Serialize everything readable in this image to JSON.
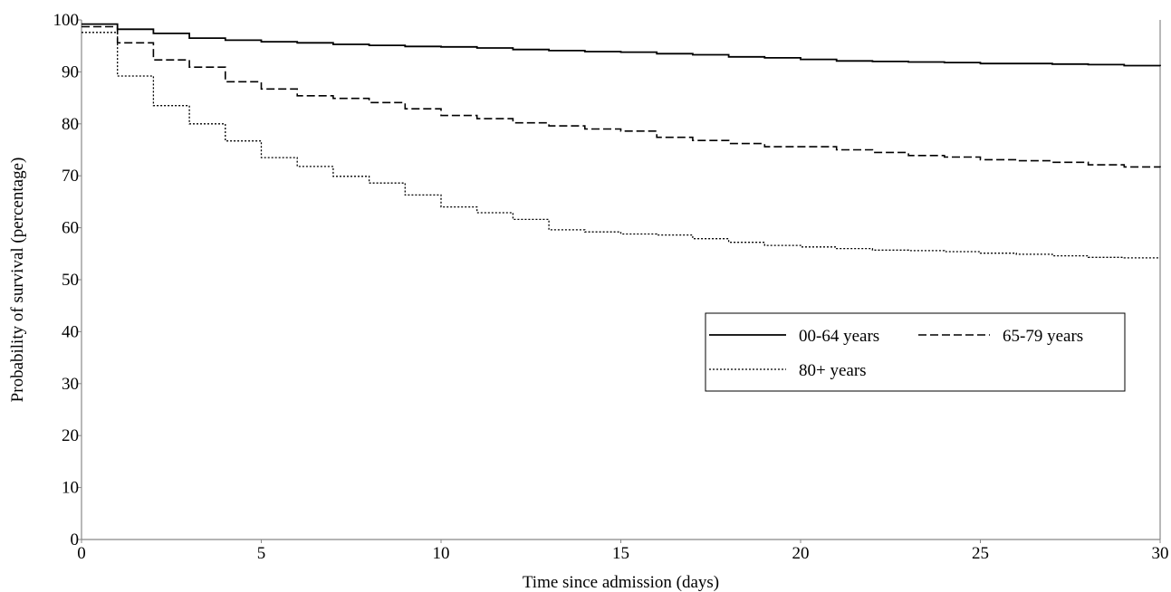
{
  "chart_data": {
    "type": "line",
    "title": "",
    "xlabel": "Time since admission (days)",
    "ylabel": "Probability of survival (percentage)",
    "xlim": [
      0,
      30
    ],
    "ylim": [
      0,
      100
    ],
    "xticks": [
      0,
      5,
      10,
      15,
      20,
      25,
      30
    ],
    "yticks": [
      0,
      10,
      20,
      30,
      40,
      50,
      60,
      70,
      80,
      90,
      100
    ],
    "grid": false,
    "legend_position": "center-right",
    "step": true,
    "series": [
      {
        "name": "00-64 years",
        "line_style": "solid",
        "color": "#000000",
        "x": [
          0,
          1,
          2,
          3,
          4,
          5,
          6,
          7,
          8,
          9,
          10,
          11,
          12,
          13,
          14,
          15,
          16,
          17,
          18,
          19,
          20,
          21,
          22,
          23,
          24,
          25,
          26,
          27,
          28,
          29,
          30
        ],
        "y": [
          99.2,
          98.2,
          97.4,
          96.5,
          96.1,
          95.8,
          95.6,
          95.3,
          95.1,
          94.9,
          94.8,
          94.6,
          94.3,
          94.1,
          93.9,
          93.8,
          93.5,
          93.3,
          92.9,
          92.7,
          92.4,
          92.1,
          92.0,
          91.9,
          91.8,
          91.6,
          91.6,
          91.5,
          91.4,
          91.2,
          91.1
        ]
      },
      {
        "name": "65-79 years",
        "line_style": "dashed",
        "color": "#000000",
        "x": [
          0,
          1,
          2,
          3,
          4,
          5,
          6,
          7,
          8,
          9,
          10,
          11,
          12,
          13,
          14,
          15,
          16,
          17,
          18,
          19,
          20,
          21,
          22,
          23,
          24,
          25,
          26,
          27,
          28,
          29,
          30
        ],
        "y": [
          98.7,
          95.6,
          92.3,
          90.9,
          88.1,
          86.7,
          85.4,
          84.9,
          84.1,
          82.9,
          81.6,
          81.0,
          80.2,
          79.6,
          79.0,
          78.6,
          77.4,
          76.8,
          76.2,
          75.6,
          75.6,
          75.0,
          74.5,
          73.9,
          73.6,
          73.1,
          72.9,
          72.6,
          72.1,
          71.7,
          71.6
        ]
      },
      {
        "name": "80+ years",
        "line_style": "dotted",
        "color": "#000000",
        "x": [
          0,
          1,
          2,
          3,
          4,
          5,
          6,
          7,
          8,
          9,
          10,
          11,
          12,
          13,
          14,
          15,
          16,
          17,
          18,
          19,
          20,
          21,
          22,
          23,
          24,
          25,
          26,
          27,
          28,
          29,
          30
        ],
        "y": [
          97.6,
          89.2,
          83.5,
          80.0,
          76.7,
          73.5,
          71.8,
          69.9,
          68.6,
          66.3,
          64.0,
          62.9,
          61.6,
          59.6,
          59.2,
          58.8,
          58.6,
          57.9,
          57.2,
          56.6,
          56.3,
          56.0,
          55.7,
          55.6,
          55.4,
          55.1,
          54.9,
          54.6,
          54.3,
          54.2,
          54.2
        ]
      }
    ]
  }
}
